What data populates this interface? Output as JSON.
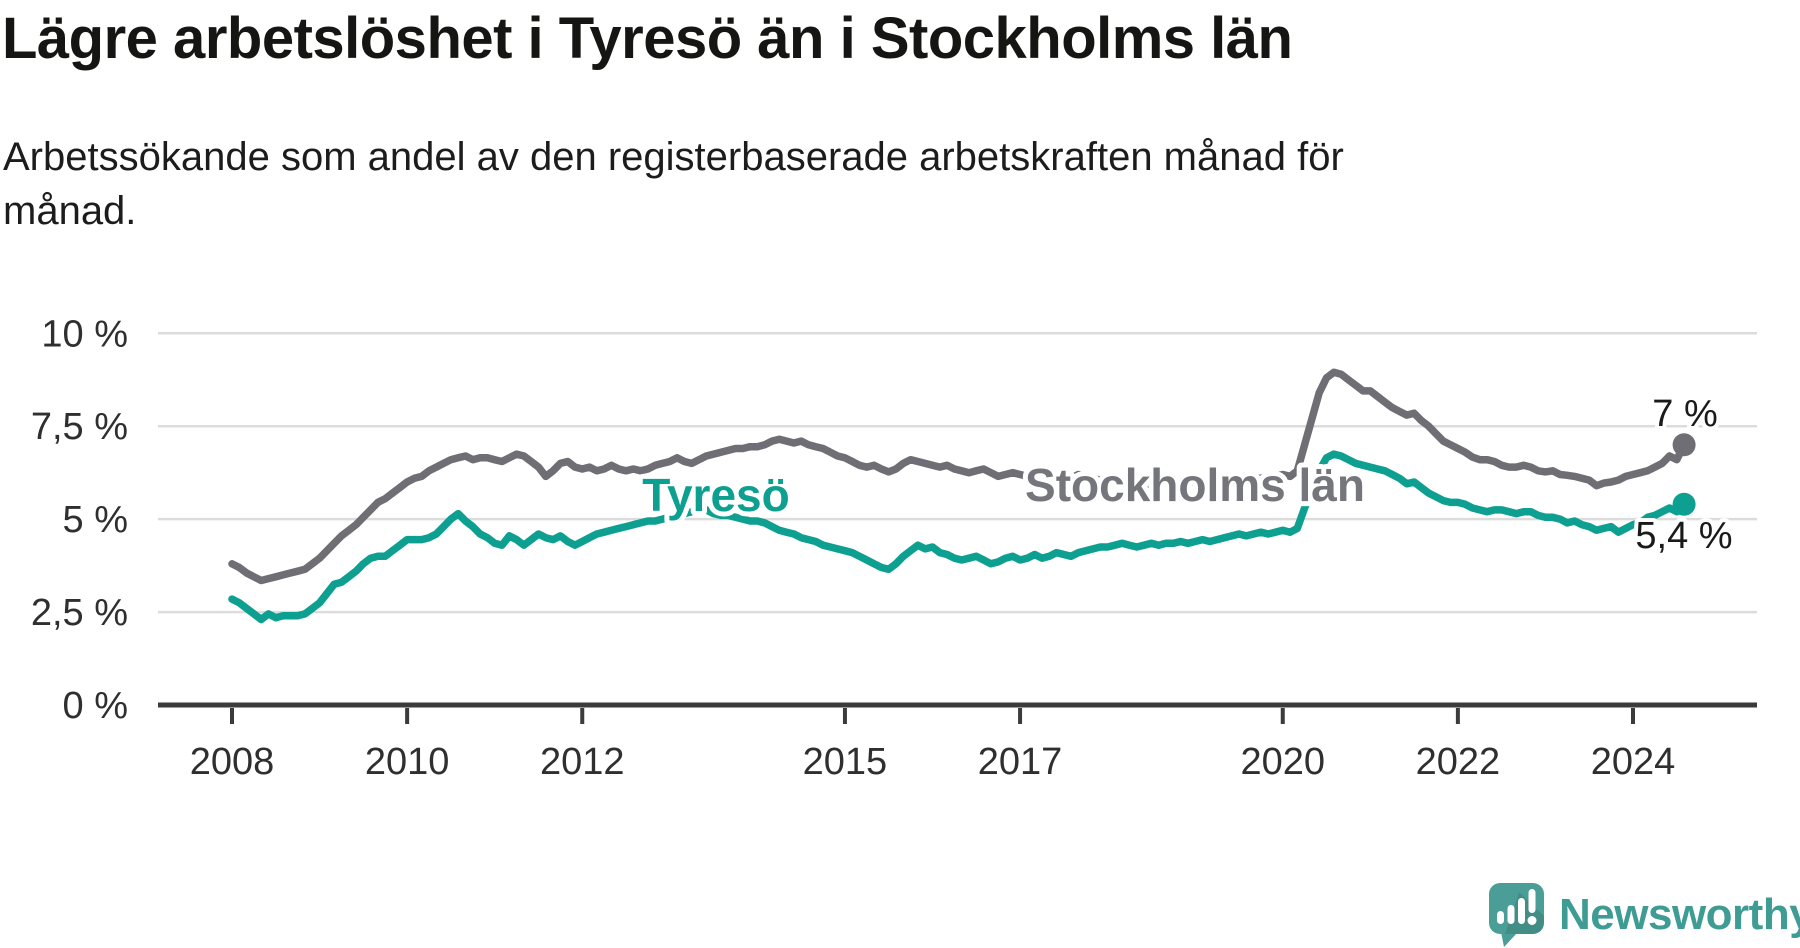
{
  "title": "Lägre arbetslöshet i Tyresö än i Stockholms län",
  "subtitle_line1": "Arbetssökande som andel av den registerbaserade arbetskraften månad för",
  "subtitle_line2": "månad.",
  "logo": {
    "brand": "Newsworthy"
  },
  "colors": {
    "tyreso": "#0d9f90",
    "stockholm_line": "#6e6e74",
    "stockholm_label": "#75757c",
    "gridline": "#dcdcdc",
    "axis": "#3b3b3b",
    "tick_text": "#2f2f2f",
    "end_label_text": "#1a1a1a",
    "logo_teal": "#4b9e97"
  },
  "chart_data": {
    "type": "line",
    "unit": "%",
    "x_start": "2008-01",
    "x_end": "2024-08",
    "points_per_year": 12,
    "ylim": [
      0,
      10
    ],
    "grid": "horizontal",
    "y_ticks": [
      {
        "value": 0,
        "label": "0 %"
      },
      {
        "value": 2.5,
        "label": "2,5 %"
      },
      {
        "value": 5,
        "label": "5 %"
      },
      {
        "value": 7.5,
        "label": "7,5 %"
      },
      {
        "value": 10,
        "label": "10 %"
      }
    ],
    "x_ticks": [
      {
        "year": 2008,
        "label": "2008"
      },
      {
        "year": 2010,
        "label": "2010"
      },
      {
        "year": 2012,
        "label": "2012"
      },
      {
        "year": 2015,
        "label": "2015"
      },
      {
        "year": 2017,
        "label": "2017"
      },
      {
        "year": 2020,
        "label": "2020"
      },
      {
        "year": 2022,
        "label": "2022"
      },
      {
        "year": 2024,
        "label": "2024"
      }
    ],
    "series": [
      {
        "name": "Stockholms län",
        "color": "#6e6e74",
        "label_color": "#75757c",
        "end_label": "7 %",
        "end_value": 7.0,
        "values": [
          3.8,
          3.7,
          3.55,
          3.45,
          3.35,
          3.4,
          3.45,
          3.5,
          3.55,
          3.6,
          3.65,
          3.8,
          3.95,
          4.15,
          4.35,
          4.55,
          4.7,
          4.85,
          5.05,
          5.25,
          5.45,
          5.55,
          5.7,
          5.85,
          6.0,
          6.1,
          6.15,
          6.3,
          6.4,
          6.5,
          6.6,
          6.65,
          6.7,
          6.6,
          6.65,
          6.65,
          6.6,
          6.55,
          6.65,
          6.75,
          6.7,
          6.55,
          6.4,
          6.15,
          6.3,
          6.5,
          6.55,
          6.4,
          6.35,
          6.4,
          6.3,
          6.35,
          6.45,
          6.35,
          6.3,
          6.35,
          6.3,
          6.35,
          6.45,
          6.5,
          6.55,
          6.65,
          6.55,
          6.5,
          6.6,
          6.7,
          6.75,
          6.8,
          6.85,
          6.9,
          6.9,
          6.95,
          6.95,
          7.0,
          7.1,
          7.15,
          7.1,
          7.05,
          7.1,
          7.0,
          6.95,
          6.9,
          6.8,
          6.7,
          6.65,
          6.55,
          6.45,
          6.4,
          6.45,
          6.35,
          6.27,
          6.35,
          6.5,
          6.6,
          6.55,
          6.5,
          6.45,
          6.4,
          6.45,
          6.35,
          6.3,
          6.25,
          6.3,
          6.35,
          6.25,
          6.15,
          6.2,
          6.25,
          6.2,
          6.15,
          6.2,
          6.15,
          6.1,
          6.1,
          6.15,
          6.1,
          6.2,
          6.15,
          6.1,
          6.05,
          6.0,
          6.0,
          5.95,
          5.9,
          5.95,
          5.9,
          5.95,
          5.9,
          5.95,
          5.9,
          5.95,
          6.0,
          6.0,
          6.05,
          6.0,
          6.05,
          6.05,
          6.1,
          6.1,
          6.05,
          6.1,
          6.1,
          6.15,
          6.15,
          6.2,
          6.15,
          6.3,
          7.0,
          7.7,
          8.4,
          8.8,
          8.95,
          8.9,
          8.75,
          8.6,
          8.45,
          8.45,
          8.3,
          8.15,
          8.0,
          7.9,
          7.8,
          7.85,
          7.65,
          7.5,
          7.3,
          7.1,
          7.0,
          6.9,
          6.8,
          6.67,
          6.6,
          6.6,
          6.55,
          6.45,
          6.4,
          6.4,
          6.45,
          6.4,
          6.3,
          6.27,
          6.3,
          6.2,
          6.18,
          6.15,
          6.1,
          6.05,
          5.9,
          5.97,
          6.0,
          6.05,
          6.15,
          6.2,
          6.25,
          6.3,
          6.4,
          6.5,
          6.7,
          6.6,
          7.0
        ]
      },
      {
        "name": "Tyresö",
        "color": "#0d9f90",
        "label_color": "#0d9f90",
        "end_label": "5,4 %",
        "end_value": 5.4,
        "values": [
          2.85,
          2.75,
          2.6,
          2.45,
          2.3,
          2.45,
          2.35,
          2.4,
          2.4,
          2.4,
          2.45,
          2.6,
          2.75,
          3.0,
          3.25,
          3.3,
          3.45,
          3.6,
          3.8,
          3.95,
          4.0,
          4.0,
          4.15,
          4.3,
          4.45,
          4.45,
          4.45,
          4.5,
          4.6,
          4.8,
          5.0,
          5.15,
          4.95,
          4.8,
          4.6,
          4.5,
          4.35,
          4.3,
          4.55,
          4.45,
          4.3,
          4.45,
          4.6,
          4.5,
          4.45,
          4.55,
          4.4,
          4.3,
          4.4,
          4.5,
          4.6,
          4.65,
          4.7,
          4.75,
          4.8,
          4.85,
          4.9,
          4.95,
          4.95,
          5.0,
          5.05,
          5.1,
          5.15,
          5.2,
          5.25,
          5.25,
          5.15,
          5.1,
          5.1,
          5.05,
          5.0,
          4.95,
          4.95,
          4.9,
          4.8,
          4.7,
          4.65,
          4.6,
          4.5,
          4.45,
          4.4,
          4.3,
          4.25,
          4.2,
          4.15,
          4.1,
          4.0,
          3.9,
          3.8,
          3.7,
          3.65,
          3.8,
          4.0,
          4.15,
          4.3,
          4.2,
          4.25,
          4.1,
          4.05,
          3.95,
          3.9,
          3.95,
          4.0,
          3.9,
          3.8,
          3.85,
          3.95,
          4.0,
          3.9,
          3.95,
          4.05,
          3.95,
          4.0,
          4.1,
          4.05,
          4.0,
          4.1,
          4.15,
          4.2,
          4.25,
          4.25,
          4.3,
          4.35,
          4.3,
          4.25,
          4.3,
          4.35,
          4.3,
          4.35,
          4.35,
          4.4,
          4.35,
          4.4,
          4.45,
          4.4,
          4.45,
          4.5,
          4.55,
          4.6,
          4.55,
          4.6,
          4.65,
          4.6,
          4.65,
          4.7,
          4.65,
          4.75,
          5.3,
          5.8,
          6.3,
          6.65,
          6.75,
          6.7,
          6.6,
          6.5,
          6.45,
          6.4,
          6.35,
          6.3,
          6.2,
          6.1,
          5.95,
          6.0,
          5.85,
          5.7,
          5.6,
          5.5,
          5.45,
          5.45,
          5.4,
          5.3,
          5.25,
          5.2,
          5.25,
          5.25,
          5.2,
          5.15,
          5.2,
          5.2,
          5.1,
          5.05,
          5.05,
          5.0,
          4.9,
          4.95,
          4.85,
          4.8,
          4.7,
          4.75,
          4.8,
          4.65,
          4.75,
          4.85,
          4.9,
          5.05,
          5.1,
          5.2,
          5.3,
          5.2,
          5.4
        ]
      }
    ]
  }
}
